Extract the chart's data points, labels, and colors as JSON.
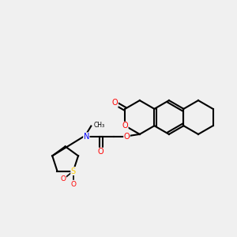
{
  "background_color": "#f0f0f0",
  "bond_color": "#000000",
  "atom_colors": {
    "O": "#ff0000",
    "N": "#0000ff",
    "S": "#ffcc00",
    "C": "#000000"
  },
  "figsize": [
    3.0,
    3.0
  ],
  "dpi": 100
}
